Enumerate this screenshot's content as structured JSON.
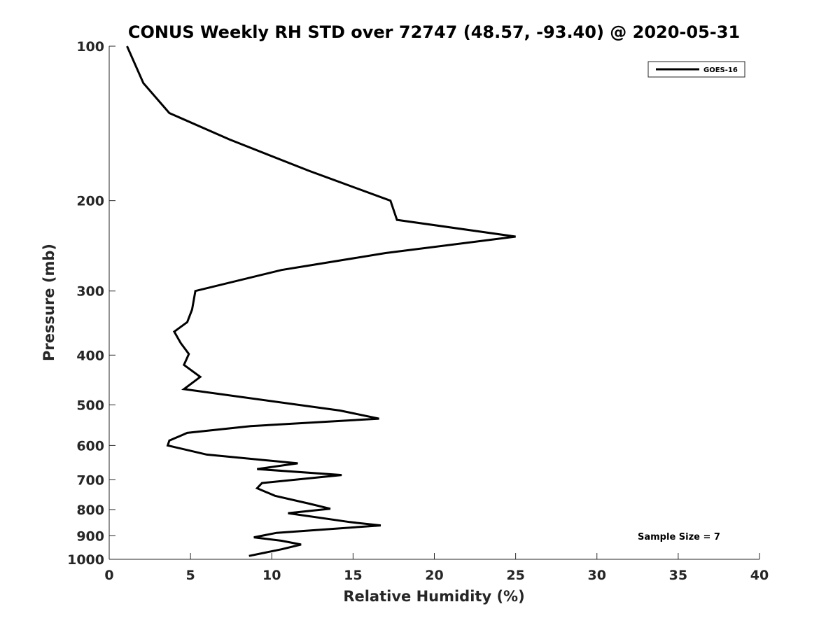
{
  "chart_data": {
    "type": "line",
    "title": "CONUS Weekly RH STD over 72747 (48.57, -93.40) @ 2020-05-31",
    "xlabel": "Relative Humidity (%)",
    "ylabel": "Pressure (mb)",
    "xlim": [
      0,
      40
    ],
    "ylim": [
      100,
      1000
    ],
    "y_scale": "log",
    "y_reversed": true,
    "x_ticks": [
      0,
      5,
      10,
      15,
      20,
      25,
      30,
      35,
      40
    ],
    "x_tick_labels": [
      "0",
      "5",
      "10",
      "15",
      "20",
      "25",
      "30",
      "35",
      "40"
    ],
    "y_ticks": [
      100,
      200,
      300,
      400,
      500,
      600,
      700,
      800,
      900,
      1000
    ],
    "y_tick_labels": [
      "100",
      "200",
      "300",
      "400",
      "500",
      "600",
      "700",
      "800",
      "900",
      "1000"
    ],
    "grid": false,
    "legend_position": "top-right",
    "series": [
      {
        "name": "GOES-16",
        "color": "#000000",
        "points": [
          [
            1.1,
            100
          ],
          [
            2.1,
            118
          ],
          [
            3.7,
            135
          ],
          [
            7.4,
            152
          ],
          [
            12.3,
            175
          ],
          [
            17.3,
            200
          ],
          [
            17.7,
            218
          ],
          [
            25.0,
            235
          ],
          [
            17.0,
            253
          ],
          [
            10.6,
            273
          ],
          [
            5.3,
            300
          ],
          [
            5.1,
            326
          ],
          [
            4.8,
            345
          ],
          [
            4.0,
            360
          ],
          [
            4.4,
            379
          ],
          [
            4.9,
            398
          ],
          [
            4.6,
            418
          ],
          [
            5.6,
            441
          ],
          [
            4.6,
            466
          ],
          [
            14.2,
            513
          ],
          [
            16.6,
            532
          ],
          [
            8.7,
            550
          ],
          [
            4.8,
            567
          ],
          [
            3.7,
            587
          ],
          [
            3.6,
            600
          ],
          [
            6.0,
            625
          ],
          [
            11.6,
            650
          ],
          [
            9.1,
            667
          ],
          [
            14.3,
            685
          ],
          [
            9.4,
            710
          ],
          [
            9.1,
            727
          ],
          [
            10.2,
            752
          ],
          [
            12.3,
            779
          ],
          [
            13.6,
            797
          ],
          [
            11.0,
            813
          ],
          [
            14.8,
            846
          ],
          [
            16.7,
            859
          ],
          [
            10.3,
            888
          ],
          [
            8.9,
            906
          ],
          [
            10.6,
            920
          ],
          [
            11.8,
            936
          ],
          [
            10.6,
            956
          ],
          [
            8.6,
            985
          ]
        ]
      }
    ],
    "annotations": [
      "Sample Size = 7"
    ]
  }
}
